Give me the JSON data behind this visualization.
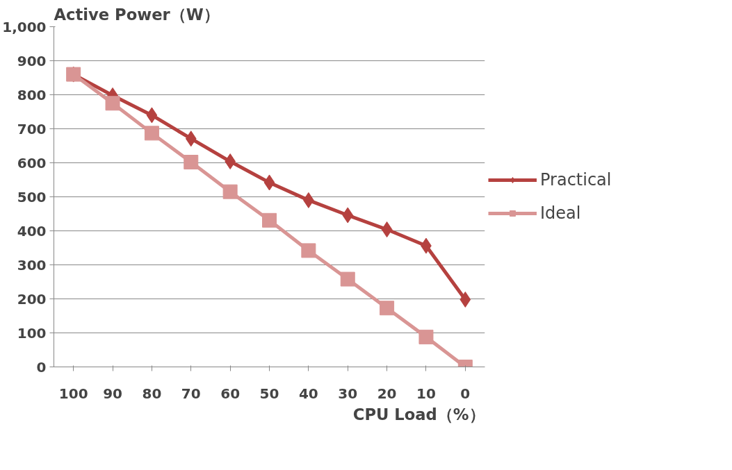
{
  "chart_data": {
    "type": "line",
    "ylabel": "Active Power（W）",
    "xlabel": "CPU Load（%）",
    "categories": [
      "100",
      "90",
      "80",
      "70",
      "60",
      "50",
      "40",
      "30",
      "20",
      "10",
      "0"
    ],
    "series": [
      {
        "name": "Practical",
        "color": "#b5413f",
        "marker": "diamond",
        "values": [
          860,
          798,
          740,
          671,
          604,
          542,
          490,
          446,
          404,
          356,
          198
        ]
      },
      {
        "name": "Ideal",
        "color": "#d99594",
        "marker": "square",
        "values": [
          860,
          775,
          687,
          602,
          515,
          431,
          342,
          258,
          173,
          88,
          0
        ]
      }
    ],
    "ylim": [
      0,
      1000
    ],
    "yticks": [
      0,
      100,
      200,
      300,
      400,
      500,
      600,
      700,
      800,
      900,
      {
        "value": 1000,
        "label": "1,000"
      }
    ],
    "grid": "y",
    "legend": "right"
  }
}
